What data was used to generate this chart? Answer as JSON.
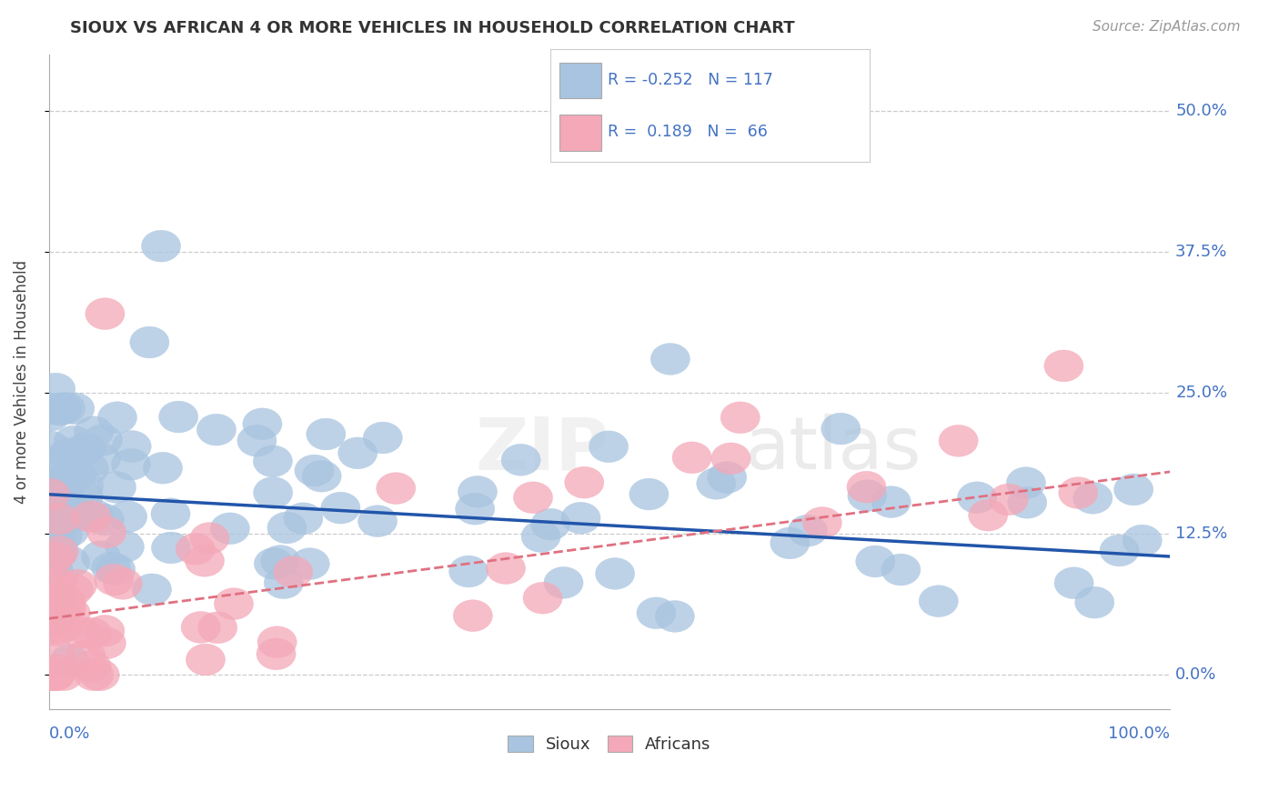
{
  "title": "SIOUX VS AFRICAN 4 OR MORE VEHICLES IN HOUSEHOLD CORRELATION CHART",
  "source": "Source: ZipAtlas.com",
  "ylabel": "4 or more Vehicles in Household",
  "ytick_labels": [
    "0.0%",
    "12.5%",
    "25.0%",
    "37.5%",
    "50.0%"
  ],
  "ytick_values": [
    0,
    12.5,
    25.0,
    37.5,
    50.0
  ],
  "xlim": [
    0,
    100
  ],
  "ylim": [
    -3,
    55
  ],
  "sioux_color": "#a8c4e0",
  "african_color": "#f4a8b8",
  "sioux_line_color": "#2255aa",
  "african_line_color": "#e07080",
  "sioux_intercept": 16.0,
  "sioux_slope": -0.055,
  "african_intercept": 5.0,
  "african_slope": 0.13
}
